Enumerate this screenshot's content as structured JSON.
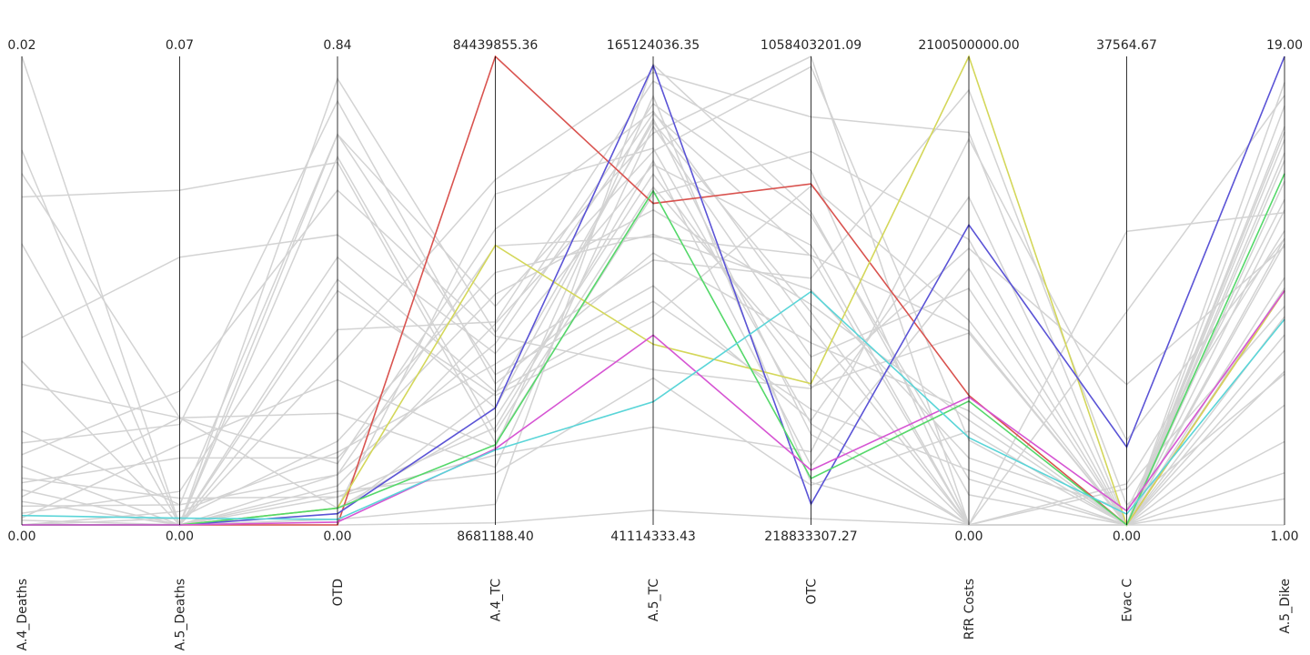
{
  "chart_data": {
    "type": "parallel_coordinates",
    "axes": [
      {
        "name": "A.4_Deaths",
        "min": 0.0,
        "max": 0.02,
        "min_label": "0.00",
        "max_label": "0.02"
      },
      {
        "name": "A.5_Deaths",
        "min": 0.0,
        "max": 0.07,
        "min_label": "0.00",
        "max_label": "0.07"
      },
      {
        "name": "OTD",
        "min": 0.0,
        "max": 0.84,
        "min_label": "0.00",
        "max_label": "0.84"
      },
      {
        "name": "A.4_TC",
        "min": 8681188.4,
        "max": 84439855.36,
        "min_label": "8681188.40",
        "max_label": "84439855.36"
      },
      {
        "name": "A.5_TC",
        "min": 41114333.43,
        "max": 165124036.35,
        "min_label": "41114333.43",
        "max_label": "165124036.35"
      },
      {
        "name": "OTC",
        "min": 218833307.27,
        "max": 1058403201.09,
        "min_label": "218833307.27",
        "max_label": "1058403201.09"
      },
      {
        "name": "RfR Costs",
        "min": 0.0,
        "max": 2100500000.0,
        "min_label": "0.00",
        "max_label": "2100500000.00"
      },
      {
        "name": "Evac C",
        "min": 0.0,
        "max": 37564.67,
        "min_label": "0.00",
        "max_label": "37564.67"
      },
      {
        "name": "A.5_Dike",
        "min": 1.0,
        "max": 19.0,
        "min_label": "1.00",
        "max_label": "19.00"
      }
    ],
    "highlighted_series": [
      {
        "color": "#d9534f",
        "values": [
          0.0,
          0.0,
          0.0,
          84439855.36,
          126210000,
          830000000,
          581000000,
          0.0,
          10.0
        ]
      },
      {
        "color": "#d4d75a",
        "values": [
          0.0,
          0.0,
          0.03,
          53900000,
          88930000,
          472000000,
          2100500000.0,
          0.0,
          10.0
        ]
      },
      {
        "color": "#5b54d6",
        "values": [
          0.0,
          0.0,
          0.02,
          27620000,
          162760000,
          256000000,
          1345000000,
          6240,
          19.0
        ]
      },
      {
        "color": "#55d86a",
        "values": [
          0.0,
          0.0,
          0.03,
          21640000,
          129560000,
          302000000,
          555000000,
          0.0,
          14.5
        ]
      },
      {
        "color": "#d655d3",
        "values": [
          0.0,
          0.0,
          0.005,
          21000000,
          91340000,
          317000000,
          573000000,
          1120,
          10.0
        ]
      },
      {
        "color": "#5ad5d8",
        "values": [
          0.0004,
          0.001,
          0.01,
          20800000,
          73700000,
          637000000,
          391000000,
          870,
          8.9
        ]
      }
    ],
    "background_color": "#d3d3d3",
    "background_series": [
      [
        0.02,
        0.0,
        0.7,
        44040000,
        144800000,
        1058400000,
        0.0,
        23540,
        13.0
      ],
      [
        0.016,
        0.0,
        0.3,
        64500000,
        160900000,
        950000000,
        1760000000,
        0.0,
        12.0
      ],
      [
        0.015,
        0.016,
        0.03,
        62200000,
        140800000,
        400000000,
        0.0,
        0.0,
        16.3
      ],
      [
        0.014,
        0.05,
        0.65,
        22000000,
        128600000,
        888000000,
        1280000000,
        0.0,
        10.1
      ],
      [
        0.012,
        0.0,
        0.8,
        39800000,
        152600000,
        773000000,
        205000000,
        0.0,
        6.9
      ],
      [
        0.008,
        0.04,
        0.52,
        36400000,
        136500000,
        720000000,
        0.0,
        17100,
        17.5
      ],
      [
        0.007,
        0.0,
        0.42,
        29600000,
        96300000,
        826000000,
        917000000,
        0.0,
        15.8
      ],
      [
        0.006,
        0.016,
        0.11,
        56500000,
        150600000,
        572000000,
        0.0,
        0.0,
        4.2
      ],
      [
        0.004,
        0.003,
        0.7,
        33000000,
        104400000,
        406000000,
        1470000000,
        0.0,
        14.2
      ],
      [
        0.0035,
        0.015,
        0.76,
        31500000,
        113100000,
        545000000,
        511000000,
        0.0,
        13.1
      ],
      [
        0.003,
        0.02,
        0.6,
        39200000,
        82200000,
        463000000,
        1240000000,
        11260,
        11.7
      ],
      [
        0.0025,
        0.0,
        0.44,
        27600000,
        148600000,
        381000000,
        0.0,
        3300,
        12.3
      ],
      [
        0.002,
        0.004,
        0.05,
        24400000,
        137500000,
        325000000,
        1150000000,
        0.0,
        18.0
      ],
      [
        0.0018,
        0.01,
        0.12,
        46000000,
        124500000,
        614000000,
        470000000,
        0.0,
        7.7
      ],
      [
        0.0015,
        0.0,
        0.35,
        41500000,
        158600000,
        854000000,
        0.0,
        0.0,
        16.1
      ],
      [
        0.0012,
        0.016,
        0.2,
        18000000,
        146600000,
        520000000,
        1060000000,
        0.0,
        11.8
      ],
      [
        0.001,
        0.0,
        0.66,
        23600000,
        130500000,
        497000000,
        0.0,
        2900,
        9.4
      ],
      [
        0.0008,
        0.003,
        0.09,
        53800000,
        117400000,
        702000000,
        870000000,
        0.0,
        15.3
      ],
      [
        0.0005,
        0.005,
        0.48,
        30200000,
        100300000,
        426000000,
        245000000,
        0.0,
        8.3
      ],
      [
        0.0003,
        0.012,
        0.26,
        21200000,
        154600000,
        295000000,
        0.0,
        0.0,
        17.1
      ],
      [
        0.0002,
        0.0,
        0.07,
        41200000,
        140000000,
        1040000000,
        380000000,
        0.0,
        5.6
      ],
      [
        0.0,
        0.002,
        0.13,
        34700000,
        111200000,
        661000000,
        1950000000,
        1600,
        6.8
      ],
      [
        0.0,
        0.0,
        0.01,
        12000000,
        163000000,
        780000000,
        135000000,
        0.0,
        9.0
      ],
      [
        0.0,
        0.0,
        0.02,
        30000000,
        147700000,
        600000000,
        0.0,
        0.0,
        15.0
      ],
      [
        0.0,
        0.0,
        0.05,
        20000000,
        67000000,
        350000000,
        1730000000,
        6800,
        12.0
      ],
      [
        0.0,
        0.0,
        0.09,
        38000000,
        150000000,
        700000000,
        0.0,
        0.0,
        3.0
      ],
      [
        0.0,
        0.0,
        0.03,
        26000000,
        134000000,
        466000000,
        860000000,
        0.0,
        1.0
      ],
      [
        0.0,
        0.0,
        0.06,
        17000000,
        80000000,
        290000000,
        420000000,
        0.0,
        10.5
      ],
      [
        0.0,
        0.0,
        0.0,
        9000000,
        45000000,
        230000000,
        0.0,
        0.0,
        2.0
      ],
      [
        0.0,
        0.001,
        0.15,
        49500000,
        118000000,
        640000000,
        300000000,
        1200,
        13.5
      ]
    ]
  }
}
